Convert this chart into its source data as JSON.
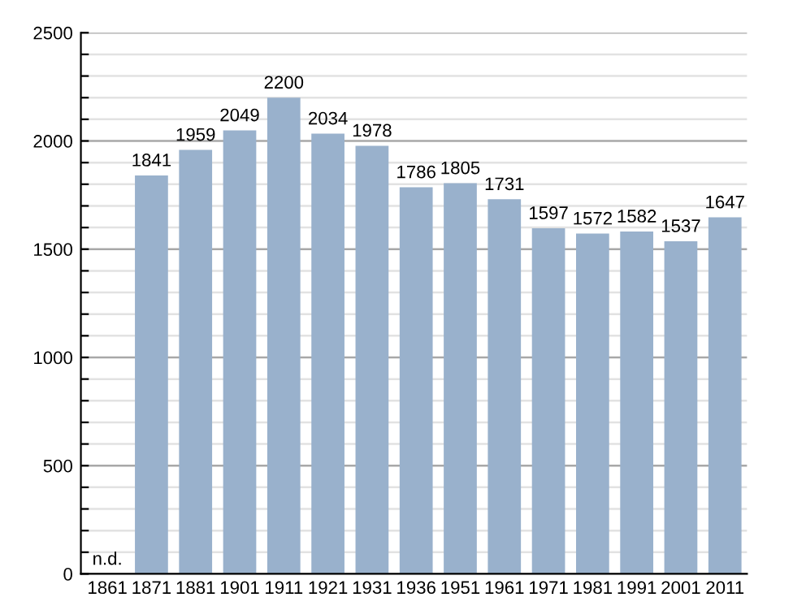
{
  "chart_data": {
    "type": "bar",
    "categories": [
      "1861",
      "1871",
      "1881",
      "1901",
      "1911",
      "1921",
      "1931",
      "1936",
      "1951",
      "1961",
      "1971",
      "1981",
      "1991",
      "2001",
      "2011"
    ],
    "values": [
      null,
      1841,
      1959,
      2049,
      2200,
      2034,
      1978,
      1786,
      1805,
      1731,
      1597,
      1572,
      1582,
      1537,
      1647
    ],
    "value_labels": [
      "n.d.",
      "1841",
      "1959",
      "2049",
      "2200",
      "2034",
      "1978",
      "1786",
      "1805",
      "1731",
      "1597",
      "1572",
      "1582",
      "1537",
      "1647"
    ],
    "color": "#99b1cc",
    "ylim": [
      0,
      2500
    ],
    "yticks": [
      0,
      {
        "value": 100,
        "label": null
      },
      {
        "value": 200,
        "label": null
      },
      {
        "value": 300,
        "label": null
      },
      {
        "value": 400,
        "label": null
      },
      500,
      {
        "value": 600,
        "label": null
      },
      {
        "value": 700,
        "label": null
      },
      {
        "value": 800,
        "label": null
      },
      {
        "value": 900,
        "label": null
      },
      1000,
      {
        "value": 1100,
        "label": null
      },
      {
        "value": 1200,
        "label": null
      },
      {
        "value": 1300,
        "label": null
      },
      {
        "value": 1400,
        "label": null
      },
      1500,
      {
        "value": 1600,
        "label": null
      },
      {
        "value": 1700,
        "label": null
      },
      {
        "value": 1800,
        "label": null
      },
      {
        "value": 1900,
        "label": null
      },
      2000,
      {
        "value": 2100,
        "label": null
      },
      {
        "value": 2200,
        "label": null
      },
      {
        "value": 2300,
        "label": null
      },
      {
        "value": 2400,
        "label": null
      },
      2500
    ],
    "grid": "y"
  }
}
